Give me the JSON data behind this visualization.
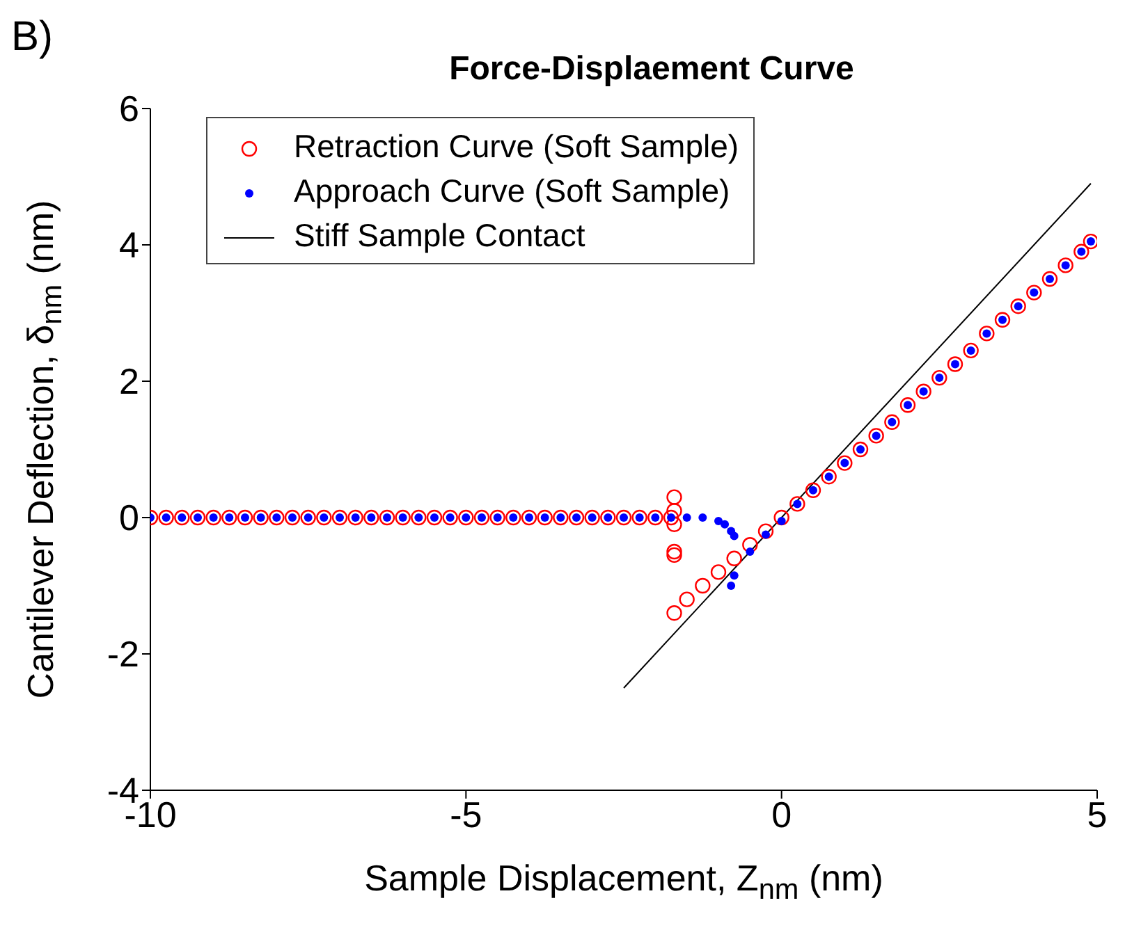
{
  "chart_data": {
    "type": "scatter",
    "title": "Force-Displaement Curve",
    "xlabel": "Sample Displacement, Z$_{nm}$ (nm)",
    "ylabel": "Cantilever Deflection, δ$_{nm}$ (nm)",
    "annotations": [
      "B)"
    ],
    "xlim": [
      -10,
      5
    ],
    "xticks": [
      -10,
      -5,
      0,
      5
    ],
    "ylim": [
      -4,
      6
    ],
    "yticks": [
      -4,
      -2,
      0,
      2,
      4,
      6
    ],
    "legend": "top left",
    "series": [
      {
        "name": "Retraction Curve (Soft Sample)",
        "color": "#ff0000",
        "marker": "circle",
        "x": [
          -10,
          -9.75,
          -9.5,
          -9.25,
          -9,
          -8.75,
          -8.5,
          -8.25,
          -8,
          -7.75,
          -7.5,
          -7.25,
          -7,
          -6.75,
          -6.5,
          -6.25,
          -6,
          -5.75,
          -5.5,
          -5.25,
          -5,
          -4.75,
          -4.5,
          -4.25,
          -4,
          -3.75,
          -3.5,
          -3.25,
          -3,
          -2.75,
          -2.5,
          -2.25,
          -2,
          -1.75,
          -1.7,
          -1.7,
          -1.7,
          -1.7,
          -1.7,
          -1.7,
          -1.5,
          -1.25,
          -1,
          -0.75,
          -0.5,
          -0.25,
          0,
          0.25,
          0.5,
          0.75,
          1,
          1.25,
          1.5,
          1.75,
          2,
          2.25,
          2.5,
          2.75,
          3,
          3.25,
          3.5,
          3.75,
          4,
          4.25,
          4.5,
          4.75,
          4.9
        ],
        "values": [
          0,
          0,
          0,
          0,
          0,
          0,
          0,
          0,
          0,
          0,
          0,
          0,
          0,
          0,
          0,
          0,
          0,
          0,
          0,
          0,
          0,
          0,
          0,
          0,
          0,
          0,
          0,
          0,
          0,
          0,
          0,
          0,
          0,
          0,
          0.3,
          0.1,
          -0.1,
          -0.5,
          -0.55,
          -1.4,
          -1.2,
          -1.0,
          -0.8,
          -0.6,
          -0.4,
          -0.2,
          0,
          0.2,
          0.4,
          0.6,
          0.8,
          1.0,
          1.2,
          1.4,
          1.65,
          1.85,
          2.05,
          2.25,
          2.45,
          2.7,
          2.9,
          3.1,
          3.3,
          3.5,
          3.7,
          3.9,
          4.05
        ]
      },
      {
        "name": "Approach Curve (Soft Sample)",
        "color": "#0000ff",
        "marker": "dot",
        "x": [
          -10,
          -9.75,
          -9.5,
          -9.25,
          -9,
          -8.75,
          -8.5,
          -8.25,
          -8,
          -7.75,
          -7.5,
          -7.25,
          -7,
          -6.75,
          -6.5,
          -6.25,
          -6,
          -5.75,
          -5.5,
          -5.25,
          -5,
          -4.75,
          -4.5,
          -4.25,
          -4,
          -3.75,
          -3.5,
          -3.25,
          -3,
          -2.75,
          -2.5,
          -2.25,
          -2,
          -1.75,
          -1.5,
          -1.25,
          -1,
          -0.9,
          -0.8,
          -0.75,
          -0.8,
          -0.75,
          -0.5,
          -0.25,
          0,
          0.25,
          0.5,
          0.75,
          1,
          1.25,
          1.5,
          1.75,
          2,
          2.25,
          2.5,
          2.75,
          3,
          3.25,
          3.5,
          3.75,
          4,
          4.25,
          4.5,
          4.75,
          4.9
        ],
        "values": [
          0,
          0,
          0,
          0,
          0,
          0,
          0,
          0,
          0,
          0,
          0,
          0,
          0,
          0,
          0,
          0,
          0,
          0,
          0,
          0,
          0,
          0,
          0,
          0,
          0,
          0,
          0,
          0,
          0,
          0,
          0,
          0,
          0,
          0,
          0,
          0,
          -0.05,
          -0.1,
          -0.2,
          -0.27,
          -1.0,
          -0.85,
          -0.5,
          -0.25,
          -0.05,
          0.2,
          0.4,
          0.6,
          0.8,
          1.0,
          1.2,
          1.4,
          1.65,
          1.85,
          2.05,
          2.25,
          2.45,
          2.7,
          2.9,
          3.1,
          3.3,
          3.5,
          3.7,
          3.9,
          4.05
        ]
      },
      {
        "name": "Stiff Sample Contact",
        "type": "line",
        "color": "#000000",
        "marker": "none",
        "x": [
          -2.5,
          4.9
        ],
        "values": [
          -2.5,
          4.9
        ]
      }
    ]
  }
}
